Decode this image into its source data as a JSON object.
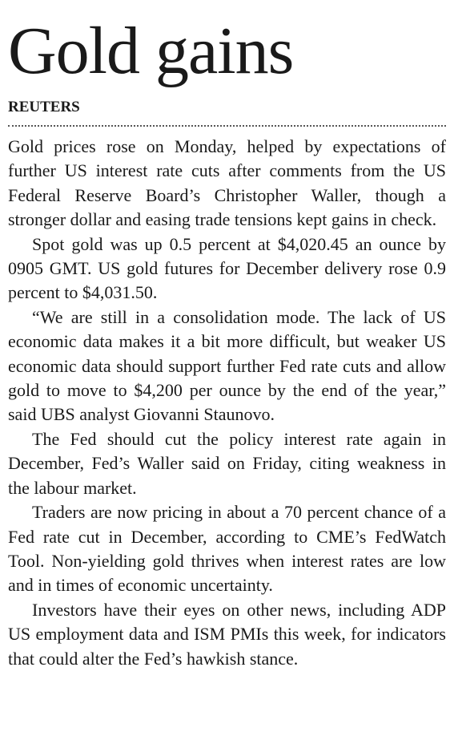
{
  "headline": "Gold gains",
  "byline": "REUTERS",
  "paragraphs": [
    "Gold prices rose on Monday, helped by expectations of further US interest rate cuts after comments from the US Federal Reserve Board’s Christopher Waller, though a stronger dollar and easing trade tensions kept gains in check.",
    "Spot gold was up 0.5 percent at $4,020.45 an ounce by 0905 GMT. US gold futures for December delivery rose 0.9 percent to $4,031.50.",
    "“We are still in a consolidation mode. The lack of US economic data makes it a bit more difficult, but weaker US economic data should support further Fed rate cuts and allow gold to move to $4,200 per ounce by the end of the year,” said UBS analyst Giovanni Staunovo.",
    "The Fed should cut the policy interest rate again in December, Fed’s Waller said on Friday, citing weakness in the labour market.",
    "Traders are now pricing in about a 70 percent chance of a Fed rate cut in December, according to CME’s FedWatch Tool. Non-yielding gold thrives when interest rates are low and in times of economic uncertainty.",
    "Investors have their eyes on other news, including ADP US employment data and ISM PMIs this week, for indicators that could alter the Fed’s hawkish stance."
  ]
}
